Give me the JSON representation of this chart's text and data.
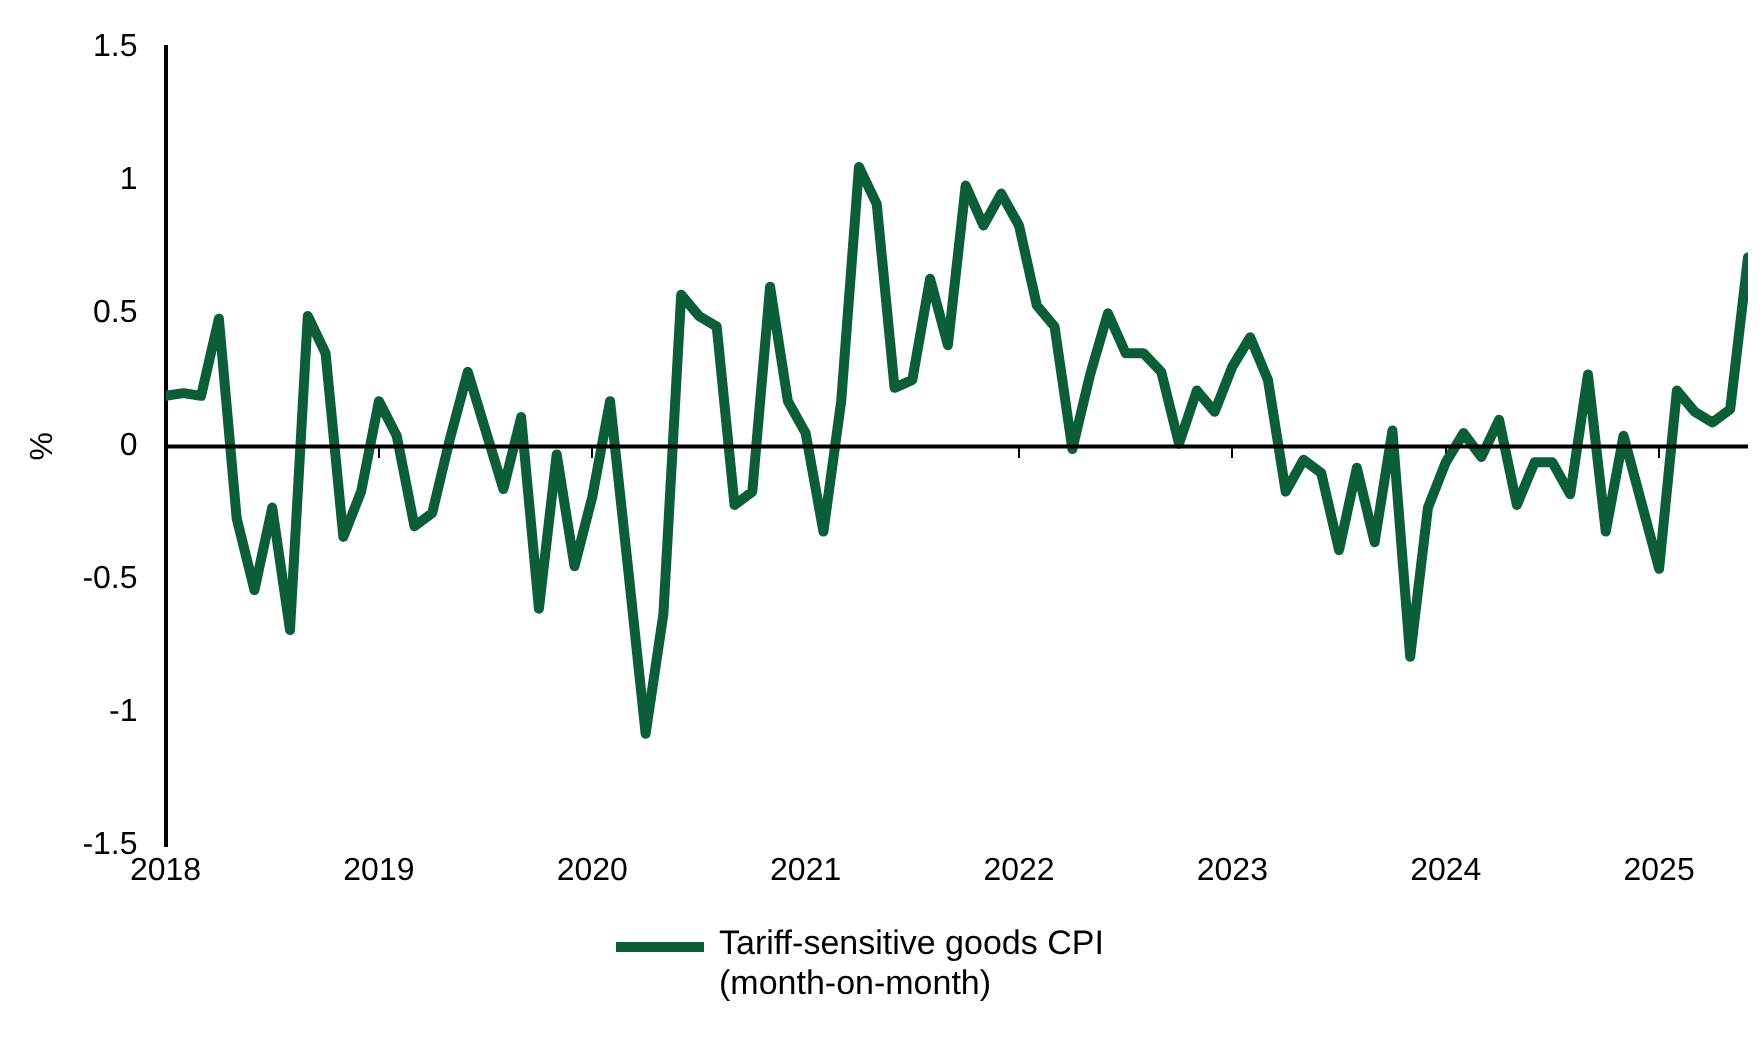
{
  "chart_data": {
    "type": "line",
    "ylabel": "%",
    "x": [
      "2018-01",
      "2018-02",
      "2018-03",
      "2018-04",
      "2018-05",
      "2018-06",
      "2018-07",
      "2018-08",
      "2018-09",
      "2018-10",
      "2018-11",
      "2018-12",
      "2019-01",
      "2019-02",
      "2019-03",
      "2019-04",
      "2019-05",
      "2019-06",
      "2019-07",
      "2019-08",
      "2019-09",
      "2019-10",
      "2019-11",
      "2019-12",
      "2020-01",
      "2020-02",
      "2020-03",
      "2020-04",
      "2020-05",
      "2020-06",
      "2020-07",
      "2020-08",
      "2020-09",
      "2020-10",
      "2020-11",
      "2020-12",
      "2021-01",
      "2021-02",
      "2021-03",
      "2021-04",
      "2021-05",
      "2021-06",
      "2021-07",
      "2021-08",
      "2021-09",
      "2021-10",
      "2021-11",
      "2021-12",
      "2022-01",
      "2022-02",
      "2022-03",
      "2022-04",
      "2022-05",
      "2022-06",
      "2022-07",
      "2022-08",
      "2022-09",
      "2022-10",
      "2022-11",
      "2022-12",
      "2023-01",
      "2023-02",
      "2023-03",
      "2023-04",
      "2023-05",
      "2023-06",
      "2023-07",
      "2023-08",
      "2023-09",
      "2023-10",
      "2023-11",
      "2023-12",
      "2024-01",
      "2024-02",
      "2024-03",
      "2024-04",
      "2024-05",
      "2024-06",
      "2024-07",
      "2024-08",
      "2024-09",
      "2024-10",
      "2024-11",
      "2024-12",
      "2025-01",
      "2025-02",
      "2025-03",
      "2025-04",
      "2025-05",
      "2025-06"
    ],
    "series": [
      {
        "name": "Tariff-sensitive goods CPI (month-on-month)",
        "color": "#0b5e38",
        "values": [
          0.19,
          0.2,
          0.19,
          0.48,
          -0.27,
          -0.54,
          -0.23,
          -0.69,
          0.49,
          0.35,
          -0.34,
          -0.17,
          0.17,
          0.04,
          -0.3,
          -0.25,
          0.03,
          0.28,
          0.06,
          -0.16,
          0.11,
          -0.61,
          -0.03,
          -0.45,
          -0.19,
          0.17,
          -0.45,
          -1.08,
          -0.63,
          0.57,
          0.49,
          0.45,
          -0.22,
          -0.17,
          0.6,
          0.17,
          0.05,
          -0.32,
          0.17,
          1.05,
          0.91,
          0.22,
          0.25,
          0.63,
          0.38,
          0.98,
          0.83,
          0.95,
          0.83,
          0.53,
          0.45,
          -0.01,
          0.27,
          0.5,
          0.35,
          0.35,
          0.28,
          0.01,
          0.21,
          0.13,
          0.3,
          0.41,
          0.25,
          -0.17,
          -0.05,
          -0.1,
          -0.39,
          -0.08,
          -0.36,
          0.06,
          -0.79,
          -0.23,
          -0.06,
          0.05,
          -0.04,
          0.1,
          -0.22,
          -0.06,
          -0.06,
          -0.18,
          0.27,
          -0.32,
          0.04,
          -0.21,
          -0.46,
          0.21,
          0.13,
          0.09,
          0.14,
          0.71
        ]
      }
    ],
    "xlim": [
      "2018-01",
      "2025-06"
    ],
    "xticks": [
      "2018",
      "2019",
      "2020",
      "2021",
      "2022",
      "2023",
      "2024",
      "2025"
    ],
    "ylim": [
      -1.5,
      1.5
    ],
    "yticks": [
      -1.5,
      -1,
      -0.5,
      0,
      0.5,
      1,
      1.5
    ],
    "ref_lines": [
      {
        "axis": "y",
        "value": 0,
        "color": "#000000"
      }
    ],
    "grid": false,
    "legend": "bottom",
    "marker": "none",
    "line_style": "solid"
  }
}
